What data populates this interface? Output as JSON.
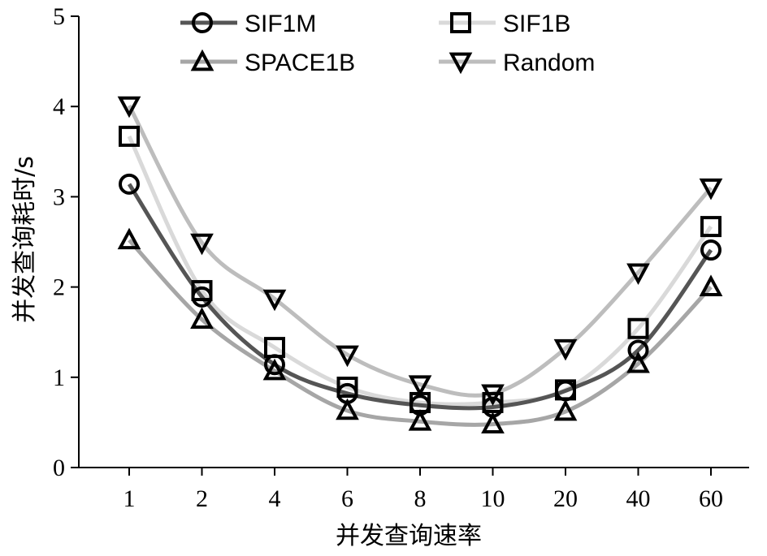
{
  "chart_data": {
    "type": "line",
    "title": "",
    "xlabel": "并发查询速率",
    "ylabel": "并发查询耗时/s",
    "categories": [
      "1",
      "2",
      "4",
      "6",
      "8",
      "10",
      "20",
      "40",
      "60"
    ],
    "ylim": [
      0,
      5
    ],
    "yticks": [
      "0",
      "1",
      "2",
      "3",
      "4",
      "5"
    ],
    "legend_position": "top",
    "series": [
      {
        "name": "SIF1M",
        "marker": "circle",
        "line_color": "#555555",
        "values": [
          3.14,
          1.89,
          1.14,
          0.82,
          0.69,
          0.67,
          0.85,
          1.3,
          2.41
        ]
      },
      {
        "name": "SIF1B",
        "marker": "square",
        "line_color": "#d9d9d9",
        "values": [
          3.67,
          1.96,
          1.33,
          0.89,
          0.72,
          0.72,
          0.86,
          1.54,
          2.67
        ]
      },
      {
        "name": "SPACE1B",
        "marker": "triangle-up",
        "line_color": "#a6a6a6",
        "values": [
          2.52,
          1.64,
          1.07,
          0.63,
          0.51,
          0.48,
          0.62,
          1.15,
          2.0
        ]
      },
      {
        "name": "Random",
        "marker": "triangle-down",
        "line_color": "#bdbdbd",
        "values": [
          4.01,
          2.49,
          1.87,
          1.25,
          0.92,
          0.82,
          1.32,
          2.16,
          3.1
        ]
      }
    ]
  }
}
